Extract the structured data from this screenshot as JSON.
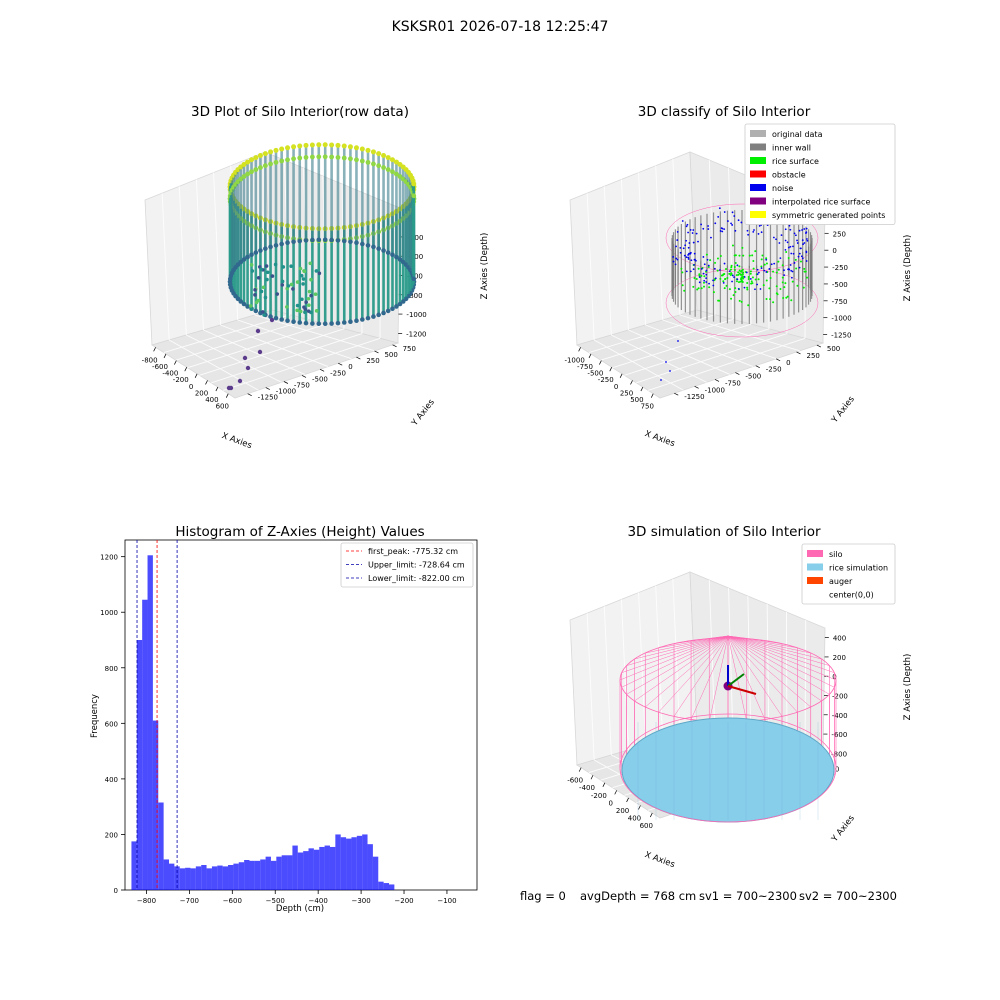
{
  "suptitle": "KSKSR01 2026-07-18 12:25:47",
  "footer": {
    "flag": "flag = 0",
    "avg": "avgDepth = 768 cm",
    "sv1": "sv1 = 700~2300",
    "sv2": "sv2 = 700~2300"
  },
  "chart_data": [
    {
      "type": "scatter",
      "title": "3D Plot of Silo Interior(row data)",
      "xlabel": "X Axies",
      "ylabel": "Y Axies",
      "zlabel": "Z Axies (Depth)",
      "xticks": [
        "-800",
        "-600",
        "-400",
        "-200",
        "0",
        "200",
        "400",
        "600"
      ],
      "yticks": [
        "750",
        "500",
        "250",
        "0",
        "-250",
        "-500",
        "-750",
        "-1000",
        "-1250"
      ],
      "zticks": [
        "0",
        "-200",
        "-400",
        "-600",
        "-800",
        "-1000",
        "-1200"
      ],
      "colormap": "viridis"
    },
    {
      "type": "scatter",
      "title": "3D classify of Silo Interior",
      "xlabel": "X Axies",
      "ylabel": "Y Axies",
      "zlabel": "Z Axies (Depth)",
      "xticks": [
        "-1000",
        "-750",
        "-500",
        "-250",
        "0",
        "250",
        "500",
        "750"
      ],
      "yticks": [
        "500",
        "250",
        "0",
        "-250",
        "-500",
        "-750",
        "-1000",
        "-1250"
      ],
      "zticks": [
        "500",
        "250",
        "0",
        "-250",
        "-500",
        "-750",
        "-1000",
        "-1250"
      ],
      "legend": [
        {
          "label": "original data",
          "color": "#b0b0b0"
        },
        {
          "label": "inner wall",
          "color": "#808080"
        },
        {
          "label": "rice surface",
          "color": "#00ee00"
        },
        {
          "label": "obstacle",
          "color": "#ff0000"
        },
        {
          "label": "noise",
          "color": "#0000ee"
        },
        {
          "label": "interpolated rice surface",
          "color": "#800080"
        },
        {
          "label": "symmetric generated points",
          "color": "#ffff00"
        }
      ]
    },
    {
      "type": "bar",
      "title": "Histogram of Z-Axies (Height) Values",
      "xlabel": "Depth (cm)",
      "ylabel": "Frequency",
      "xlim": [
        -850,
        -30
      ],
      "ylim": [
        0,
        1260
      ],
      "xticks": [
        -800,
        -700,
        -600,
        -500,
        -400,
        -300,
        -200,
        -100
      ],
      "yticks": [
        0,
        200,
        400,
        600,
        800,
        1000,
        1200
      ],
      "bin_width": 12.5,
      "bin_start": -835,
      "values": [
        175,
        900,
        1045,
        1205,
        610,
        315,
        110,
        95,
        85,
        78,
        80,
        78,
        85,
        90,
        78,
        85,
        88,
        85,
        90,
        95,
        100,
        108,
        105,
        105,
        110,
        120,
        105,
        120,
        125,
        125,
        160,
        135,
        140,
        150,
        145,
        155,
        160,
        155,
        200,
        190,
        185,
        190,
        195,
        200,
        165,
        120,
        30,
        25,
        20
      ],
      "color": "#0000ff",
      "vlines": [
        {
          "label": "first_peak: -775.32 cm",
          "x": -775.32,
          "color": "#ff0000"
        },
        {
          "label": "Upper_limit: -728.64 cm",
          "x": -728.64,
          "color": "#0000aa"
        },
        {
          "label": "Lower_limit: -822.00 cm",
          "x": -822.0,
          "color": "#0000aa"
        }
      ]
    },
    {
      "type": "scatter",
      "title": "3D simulation of Silo Interior",
      "xlabel": "X Axies",
      "ylabel": "Y Axies",
      "zlabel": "Z Axies (Depth)",
      "xticks": [
        "-600",
        "-400",
        "-200",
        "0",
        "200",
        "400",
        "600"
      ],
      "yticks": [
        "600",
        "400",
        "200",
        "0",
        "-200",
        "-400",
        "-600"
      ],
      "zticks": [
        "400",
        "200",
        "0",
        "-200",
        "-400",
        "-600",
        "-800"
      ],
      "legend": [
        {
          "label": "silo",
          "color": "#ff69b4"
        },
        {
          "label": "rice simulation",
          "color": "#87ceeb"
        },
        {
          "label": "auger",
          "color": "#ff4500"
        },
        {
          "label": "center(0,0)",
          "color": "#ffffff"
        }
      ]
    }
  ]
}
